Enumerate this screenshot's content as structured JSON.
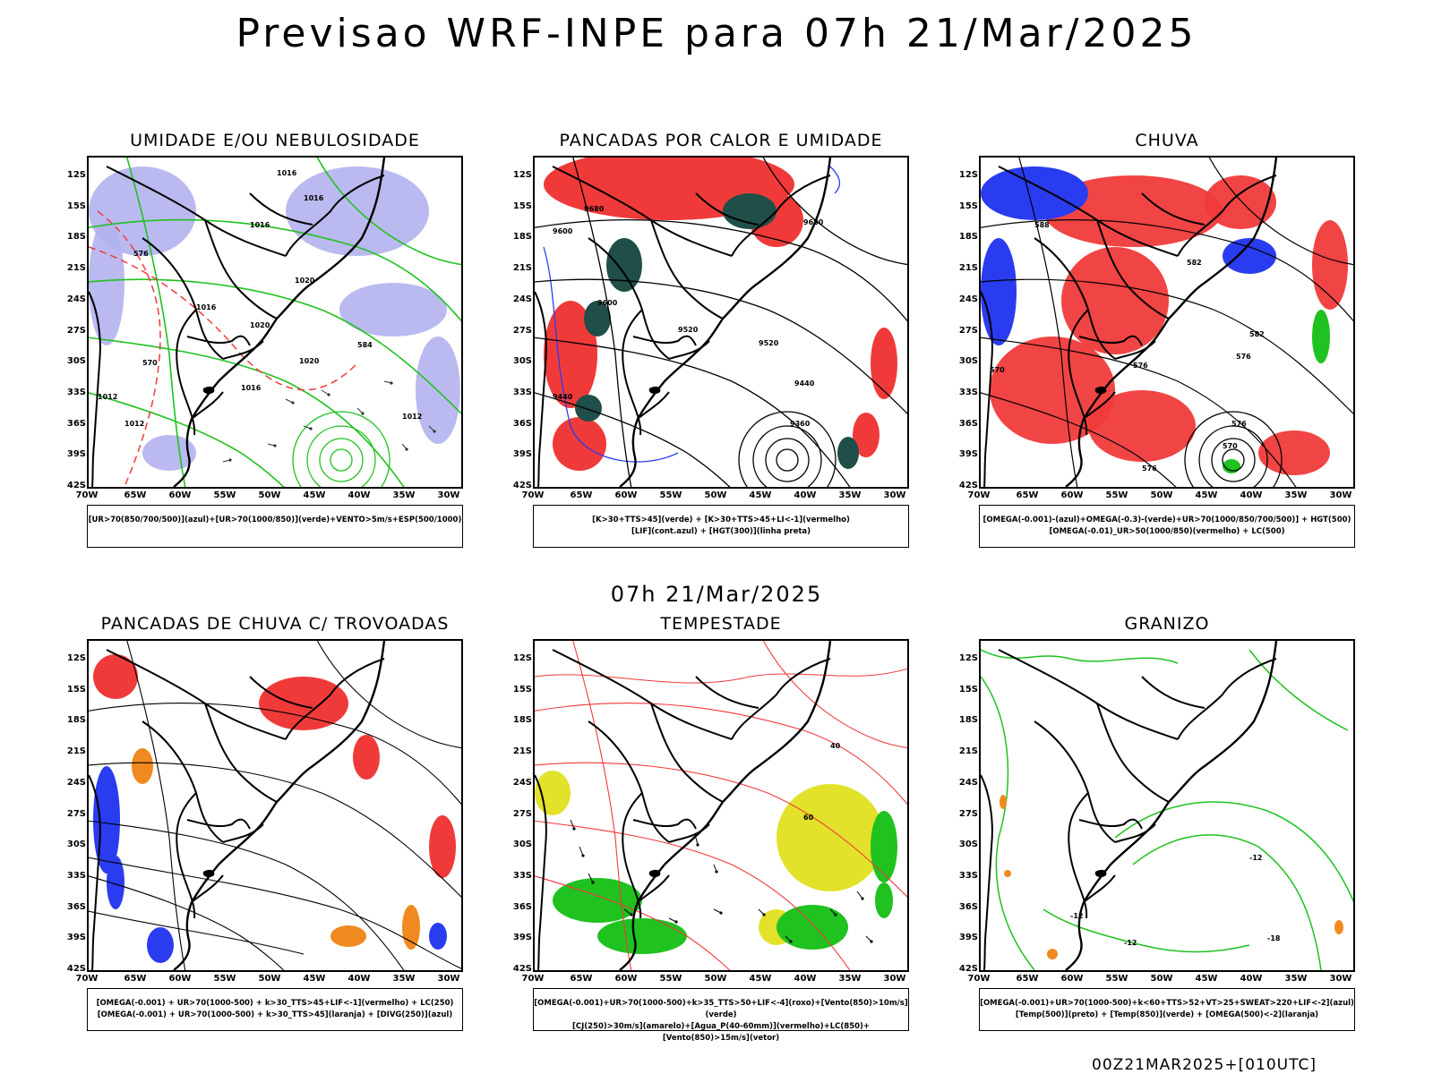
{
  "header": {
    "title": "Previsao WRF-INPE  para 07h 21/Mar/2025"
  },
  "subheader": {
    "time": "07h 21/Mar/2025"
  },
  "footer": {
    "stamp": "00Z21MAR2025+[010UTC]"
  },
  "axes": {
    "lat_labels": [
      "12S",
      "15S",
      "18S",
      "21S",
      "24S",
      "27S",
      "30S",
      "33S",
      "36S",
      "39S",
      "42S"
    ],
    "lon_labels": [
      "70W",
      "65W",
      "60W",
      "55W",
      "50W",
      "45W",
      "40W",
      "35W",
      "30W"
    ]
  },
  "panels": [
    {
      "title": "UMIDADE E/OU NEBULOSIDADE",
      "legend": [
        "[UR>70(850/700/500)](azul)+[UR>70(1000/850)](verde)+VENTO>5m/s+ESP(500/1000)"
      ],
      "contour_labels": [
        "1016",
        "1016",
        "1016",
        "1020",
        "1016",
        "1020",
        "1020",
        "1016",
        "1012",
        "1012",
        "570",
        "576",
        "584",
        "1012"
      ]
    },
    {
      "title": "PANCADAS POR CALOR E UMIDADE",
      "legend": [
        "[K>30+TTS>45](verde) + [K>30+TTS>45+LI<-1](vermelho)",
        "[LIF](cont.azul) + [HGT(300)](linha preta)"
      ],
      "contour_labels": [
        "9680",
        "9680",
        "9600",
        "9600",
        "9520",
        "9520",
        "9440",
        "9360",
        "9440"
      ]
    },
    {
      "title": "CHUVA",
      "legend": [
        "[OMEGA(-0.001)-(azul)+OMEGA(-0.3)-(verde)+UR>70(1000/850/700/500)] + HGT(500)",
        "[OMEGA(-0.01)_UR>50(1000/850)(vermelho) + LC(500)"
      ],
      "contour_labels": [
        "588",
        "582",
        "582",
        "576",
        "576",
        "570",
        "576",
        "570",
        "576"
      ]
    },
    {
      "title": "PANCADAS DE CHUVA C/ TROVOADAS",
      "legend": [
        "[OMEGA(-0.001) + UR>70(1000-500) + k>30_TTS>45+LIF<-1](vermelho) + LC(250)",
        "[OMEGA(-0.001) + UR>70(1000-500) + k>30_TTS>45](laranja) + [DIVG(250)](azul)"
      ],
      "contour_labels": []
    },
    {
      "title": "TEMPESTADE",
      "legend": [
        "[OMEGA(-0.001)+UR>70(1000-500)+k>35_TTS>50+LIF<-4](roxo)+[Vento(850)>10m/s](verde)",
        "[CJ(250)>30m/s](amarelo)+[Agua_P(40-60mm)](vermelho)+LC(850)+[Vento(850)>15m/s](vetor)"
      ],
      "contour_labels": [
        "40",
        "60"
      ]
    },
    {
      "title": "GRANIZO",
      "legend": [
        "[OMEGA(-0.001)+UR>70(1000-500)+k<60+TTS>52+VT>25+SWEAT>220+LIF<-2](azul)",
        "[Temp(500)](preto) + [Temp(850)](verde) + [OMEGA(500)<-2](laranja)"
      ],
      "contour_labels": [
        "-12",
        "-12",
        "-12",
        "-18"
      ]
    }
  ],
  "colors": {
    "red": "#f03a3a",
    "green": "#1fc21f",
    "blue": "#2a3cf0",
    "lavender": "#b2b2f0",
    "darkgreen": "#1f4f48",
    "orange": "#f08a20",
    "yellow": "#e2e22a",
    "black": "#000000"
  }
}
